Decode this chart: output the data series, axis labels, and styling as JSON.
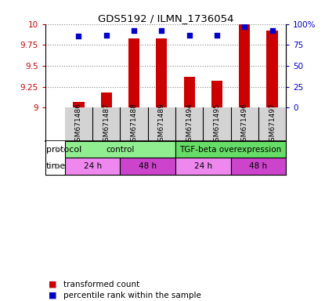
{
  "title": "GDS5192 / ILMN_1736054",
  "samples": [
    "GSM671486",
    "GSM671487",
    "GSM671488",
    "GSM671489",
    "GSM671494",
    "GSM671495",
    "GSM671496",
    "GSM671497"
  ],
  "bar_values": [
    9.07,
    9.18,
    9.83,
    9.83,
    9.37,
    9.32,
    10.0,
    9.92
  ],
  "dot_values": [
    86,
    87,
    92,
    92,
    87,
    87,
    97,
    92
  ],
  "ylim_left": [
    9.0,
    10.0
  ],
  "ylim_right": [
    0,
    100
  ],
  "yticks_left": [
    9.0,
    9.25,
    9.5,
    9.75,
    10.0
  ],
  "ytick_labels_left": [
    "9",
    "9.25",
    "9.5",
    "9.75",
    "10"
  ],
  "yticks_right": [
    0,
    25,
    50,
    75,
    100
  ],
  "ytick_labels_right": [
    "0",
    "25",
    "50",
    "75",
    "100%"
  ],
  "bar_color": "#cc0000",
  "dot_color": "#0000cc",
  "bar_bottom": 9.0,
  "protocol_groups": [
    {
      "label": "control",
      "start": 0,
      "end": 4,
      "color": "#90ee90"
    },
    {
      "label": "TGF-beta overexpression",
      "start": 4,
      "end": 8,
      "color": "#66dd66"
    }
  ],
  "time_groups": [
    {
      "label": "24 h",
      "start": 0,
      "end": 2,
      "color": "#ee88ee"
    },
    {
      "label": "48 h",
      "start": 2,
      "end": 4,
      "color": "#cc44cc"
    },
    {
      "label": "24 h",
      "start": 4,
      "end": 6,
      "color": "#ee88ee"
    },
    {
      "label": "48 h",
      "start": 6,
      "end": 8,
      "color": "#cc44cc"
    }
  ],
  "legend_items": [
    {
      "label": "transformed count",
      "color": "#cc0000"
    },
    {
      "label": "percentile rank within the sample",
      "color": "#0000cc"
    }
  ],
  "left_axis_color": "#cc0000",
  "right_axis_color": "#0000cc",
  "label_bg_color": "#d3d3d3",
  "fig_width": 4.15,
  "fig_height": 3.84,
  "dpi": 100
}
